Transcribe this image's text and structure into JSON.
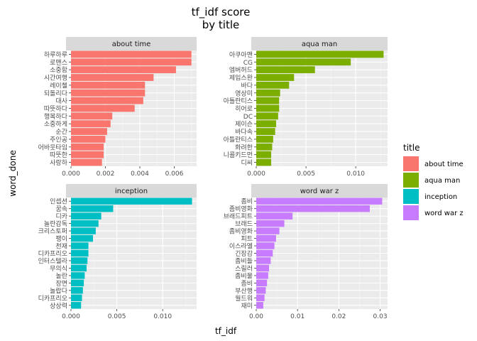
{
  "chart_data": {
    "type": "bar",
    "orientation": "horizontal",
    "title": "tf_idf score",
    "subtitle": "by title",
    "xlabel": "tf_idf",
    "ylabel": "word_done",
    "grid": true,
    "legend": {
      "title": "title",
      "position": "right",
      "entries": [
        {
          "name": "about time",
          "color": "#F8766D"
        },
        {
          "name": "aqua man",
          "color": "#7CAE00"
        },
        {
          "name": "inception",
          "color": "#00BFC4"
        },
        {
          "name": "word war z",
          "color": "#C77CFF"
        }
      ]
    },
    "panels": [
      {
        "strip": "about time",
        "color": "#F8766D",
        "xlim": [
          0,
          0.0073
        ],
        "xticks": [
          0.0,
          0.002,
          0.004,
          0.006
        ],
        "xtick_labels": [
          "0.000",
          "0.002",
          "0.004",
          "0.006"
        ],
        "categories": [
          "하루하루",
          "로맨스",
          "소중함",
          "시간여행",
          "레이첼",
          "되돌리다",
          "대사",
          "따뜻하다",
          "행복하다",
          "소중하게",
          "순간",
          "주인공",
          "어바웃타임",
          "따뜻한",
          "사랑하"
        ],
        "values": [
          0.007,
          0.007,
          0.0061,
          0.0048,
          0.0043,
          0.0043,
          0.0042,
          0.0037,
          0.0024,
          0.0023,
          0.0021,
          0.002,
          0.0019,
          0.0019,
          0.0018
        ]
      },
      {
        "strip": "aqua man",
        "color": "#7CAE00",
        "xlim": [
          0,
          0.0132
        ],
        "xticks": [
          0.0,
          0.005,
          0.01
        ],
        "xtick_labels": [
          "0.000",
          "0.005",
          "0.010"
        ],
        "categories": [
          "아쿠아맨",
          "CG",
          "엠버허드",
          "제임스완",
          "바다",
          "영상미",
          "아틀란티스",
          "히어로",
          "DC",
          "제이슨",
          "바다속",
          "아틀란티스",
          "화려한",
          "니콜키드먼",
          "디씨"
        ],
        "values": [
          0.0128,
          0.0095,
          0.0059,
          0.0038,
          0.0033,
          0.0024,
          0.0023,
          0.0023,
          0.0022,
          0.002,
          0.0019,
          0.0017,
          0.0016,
          0.0015,
          0.0015
        ]
      },
      {
        "strip": "inception",
        "color": "#00BFC4",
        "xlim": [
          0,
          0.0137
        ],
        "xticks": [
          0.0,
          0.005,
          0.01
        ],
        "xtick_labels": [
          "0.000",
          "0.005",
          "0.010"
        ],
        "categories": [
          "인셉션",
          "꿈속",
          "디카",
          "놀란감독",
          "크리스토퍼",
          "팽이",
          "천재",
          "디카프리오",
          "인터스텔라",
          "무의식",
          "놀란",
          "장면",
          "놀랍다",
          "디카프리오",
          "상상력"
        ],
        "values": [
          0.0132,
          0.0046,
          0.0033,
          0.003,
          0.0027,
          0.0024,
          0.0019,
          0.0019,
          0.0018,
          0.0017,
          0.0015,
          0.0014,
          0.0013,
          0.0012,
          0.0011
        ]
      },
      {
        "strip": "word war z",
        "color": "#C77CFF",
        "xlim": [
          0,
          0.0318
        ],
        "xticks": [
          0.0,
          0.01,
          0.02,
          0.03
        ],
        "xtick_labels": [
          "0.00",
          "0.01",
          "0.02",
          "0.03"
        ],
        "categories": [
          "좀비",
          "좀비영화",
          "브래드피트",
          "브래드",
          "좀비영화",
          "피트",
          "이스라엘",
          "긴장감",
          "좀비들",
          "스릴러",
          "좀비물",
          "좀비",
          "부산행",
          "월드워",
          "재미"
        ],
        "values": [
          0.0305,
          0.0275,
          0.0088,
          0.0068,
          0.0056,
          0.0048,
          0.0044,
          0.004,
          0.0035,
          0.0031,
          0.0029,
          0.0026,
          0.0023,
          0.002,
          0.0017
        ]
      }
    ]
  }
}
